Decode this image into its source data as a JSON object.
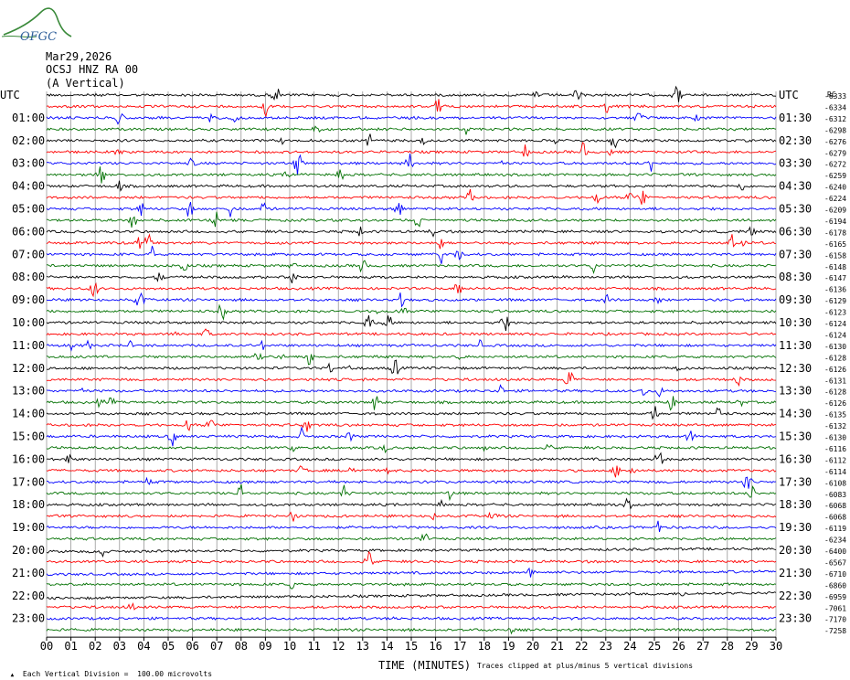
{
  "logo": {
    "text": "OFGC",
    "color": "#3a8a3a",
    "text_color": "#2f5f9a"
  },
  "header": {
    "date": "Mar29,2026",
    "station": "OCSJ HNZ RA 00",
    "component": "(A Vertical)"
  },
  "left_axis_title": "UTC",
  "right_axis_title": "UTC",
  "right_values_title": "RC",
  "chart_data": {
    "type": "line",
    "description_scale": "Each Vertical Division =  100.00 microvolts",
    "clip_note": "Traces clipped at plus/minus 5 vertical divisions",
    "xlabel": "TIME (MINUTES)",
    "xlim": [
      0,
      30
    ],
    "x_ticks": [
      "00",
      "01",
      "02",
      "03",
      "04",
      "05",
      "06",
      "07",
      "08",
      "09",
      "10",
      "11",
      "12",
      "13",
      "14",
      "15",
      "16",
      "17",
      "18",
      "19",
      "20",
      "21",
      "22",
      "23",
      "24",
      "25",
      "26",
      "27",
      "28",
      "29",
      "30"
    ],
    "left_labels": [
      "UTC",
      "01:00",
      "02:00",
      "03:00",
      "04:00",
      "05:00",
      "06:00",
      "07:00",
      "08:00",
      "09:00",
      "10:00",
      "11:00",
      "12:00",
      "13:00",
      "14:00",
      "15:00",
      "16:00",
      "17:00",
      "18:00",
      "19:00",
      "20:00",
      "21:00",
      "22:00",
      "23:00"
    ],
    "right_labels": [
      "UTC",
      "01:30",
      "02:30",
      "03:30",
      "04:30",
      "05:30",
      "06:30",
      "07:30",
      "08:30",
      "09:30",
      "10:30",
      "11:30",
      "12:30",
      "13:30",
      "14:30",
      "15:30",
      "16:30",
      "17:30",
      "18:30",
      "19:30",
      "20:30",
      "21:30",
      "22:30",
      "23:30"
    ],
    "trace_colors": [
      "#000000",
      "#ff0000",
      "#0000ff",
      "#007000"
    ],
    "trace_offsets": [
      "-6333",
      "-6334",
      "-6312",
      "-6298",
      "-6276",
      "-6279",
      "-6272",
      "-6259",
      "-6240",
      "-6224",
      "-6209",
      "-6194",
      "-6178",
      "-6165",
      "-6158",
      "-6148",
      "-6147",
      "-6136",
      "-6129",
      "-6123",
      "-6124",
      "-6124",
      "-6130",
      "-6128",
      "-6126",
      "-6131",
      "-6128",
      "-6126",
      "-6135",
      "-6132",
      "-6130",
      "-6116",
      "-6112",
      "-6114",
      "-6108",
      "-6083",
      "-6068",
      "-6068",
      "-6119",
      "-6234",
      "-6400",
      "-6567",
      "-6710",
      "-6860",
      "-6959",
      "-7061",
      "-7170",
      "-7258"
    ]
  }
}
